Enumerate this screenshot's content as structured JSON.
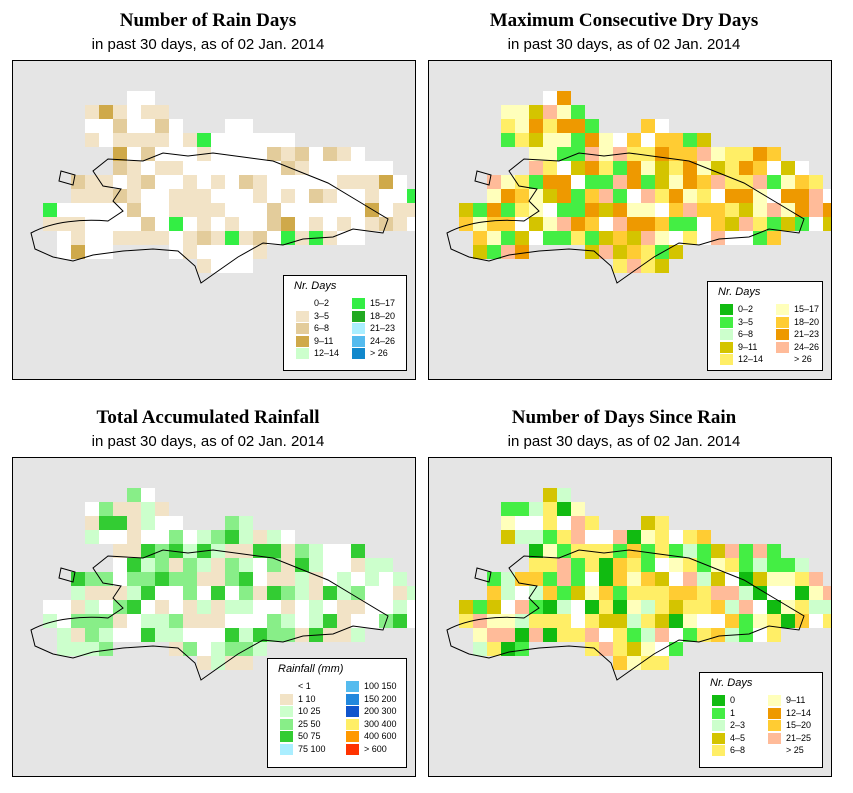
{
  "panels": [
    {
      "id": "rain-days",
      "title": "Number of Rain Days",
      "subtitle": "in past 30 days, as of  02 Jan. 2014",
      "legend": {
        "title": "Nr. Days",
        "items": [
          {
            "label": "0–2",
            "color": "#ffffff"
          },
          {
            "label": "3–5",
            "color": "#f2e3c6"
          },
          {
            "label": "6–8",
            "color": "#e3cc9b"
          },
          {
            "label": "9–11",
            "color": "#cfa94a"
          },
          {
            "label": "12–14",
            "color": "#ccffcc"
          },
          {
            "label": "15–17",
            "color": "#33ee44"
          },
          {
            "label": "18–20",
            "color": "#22aa22"
          },
          {
            "label": "21–23",
            "color": "#aaeeff"
          },
          {
            "label": "24–26",
            "color": "#55bbee"
          },
          {
            "label": "> 26",
            "color": "#1188cc"
          }
        ]
      }
    },
    {
      "id": "max-dry-days",
      "title": "Maximum Consecutive Dry Days",
      "subtitle": "in past 30 days, as of  02 Jan. 2014",
      "legend": {
        "title": "Nr. Days",
        "items": [
          {
            "label": "0–2",
            "color": "#11bb11"
          },
          {
            "label": "3–5",
            "color": "#44ee44"
          },
          {
            "label": "6–8",
            "color": "#ccffcc"
          },
          {
            "label": "9–11",
            "color": "#d4c400"
          },
          {
            "label": "12–14",
            "color": "#ffee66"
          },
          {
            "label": "15–17",
            "color": "#ffffbb"
          },
          {
            "label": "18–20",
            "color": "#ffcc33"
          },
          {
            "label": "21–23",
            "color": "#ee9900"
          },
          {
            "label": "24–26",
            "color": "#ffbb99"
          },
          {
            "label": "> 26",
            "color": "#ffffff"
          }
        ]
      }
    },
    {
      "id": "total-rainfall",
      "title": "Total Accumulated Rainfall",
      "subtitle": "in past 30 days, as of  02 Jan. 2014",
      "legend": {
        "title": "Rainfall (mm)",
        "items": [
          {
            "label": "< 1",
            "color": "#ffffff"
          },
          {
            "label": "1    10",
            "color": "#f2e3c6"
          },
          {
            "label": "10    25",
            "color": "#ccffcc"
          },
          {
            "label": "25    50",
            "color": "#88ee88"
          },
          {
            "label": "50    75",
            "color": "#33cc33"
          },
          {
            "label": "75   100",
            "color": "#aaeeff"
          },
          {
            "label": "100  150",
            "color": "#55bbee"
          },
          {
            "label": "150  200",
            "color": "#2288dd"
          },
          {
            "label": "200  300",
            "color": "#1155cc"
          },
          {
            "label": "300  400",
            "color": "#ffee66"
          },
          {
            "label": "400  600",
            "color": "#ff9900"
          },
          {
            "label": "> 600",
            "color": "#ff3300"
          }
        ]
      }
    },
    {
      "id": "days-since-rain",
      "title": "Number of Days Since Rain",
      "subtitle": "in past 30 days, as of  02 Jan. 2014",
      "legend": {
        "title": "Nr. Days",
        "items": [
          {
            "label": "0",
            "color": "#11bb11"
          },
          {
            "label": "1",
            "color": "#44ee44"
          },
          {
            "label": "2–3",
            "color": "#ccffcc"
          },
          {
            "label": "4–5",
            "color": "#d4c400"
          },
          {
            "label": "6–8",
            "color": "#ffee66"
          },
          {
            "label": "9–11",
            "color": "#ffffbb"
          },
          {
            "label": "12–14",
            "color": "#ee9900"
          },
          {
            "label": "15–20",
            "color": "#ffcc33"
          },
          {
            "label": "21–25",
            "color": "#ffbb99"
          },
          {
            "label": "> 25",
            "color": "#ffffff"
          }
        ]
      }
    }
  ],
  "colors": {
    "ocean": "#e5e5e5",
    "coastline": "#000000"
  }
}
